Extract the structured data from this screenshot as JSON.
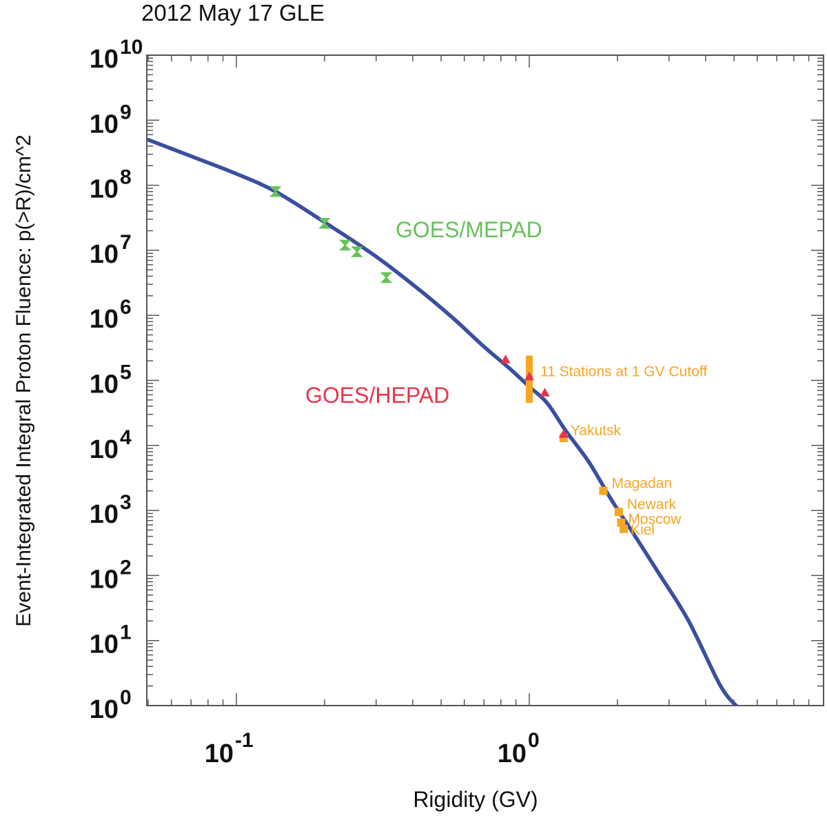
{
  "chart_data": {
    "type": "line",
    "title": "2012 May 17 GLE",
    "xlabel": "Rigidity (GV)",
    "ylabel": "Event-Integrated Integral Proton Fluence: p(>R)/cm^2",
    "x_scale": "log",
    "y_scale": "log",
    "xlim": [
      0.05,
      9.6
    ],
    "ylim": [
      1,
      10000000000
    ],
    "x_ticks": [
      {
        "value": 0.1,
        "base": "10",
        "exp": "-1"
      },
      {
        "value": 1,
        "base": "10",
        "exp": "0"
      }
    ],
    "y_ticks": [
      {
        "value": 1,
        "base": "10",
        "exp": "0"
      },
      {
        "value": 10,
        "base": "10",
        "exp": "1"
      },
      {
        "value": 100,
        "base": "10",
        "exp": "2"
      },
      {
        "value": 1000,
        "base": "10",
        "exp": "3"
      },
      {
        "value": 10000,
        "base": "10",
        "exp": "4"
      },
      {
        "value": 100000,
        "base": "10",
        "exp": "5"
      },
      {
        "value": 1000000,
        "base": "10",
        "exp": "6"
      },
      {
        "value": 10000000,
        "base": "10",
        "exp": "7"
      },
      {
        "value": 100000000,
        "base": "10",
        "exp": "8"
      },
      {
        "value": 1000000000,
        "base": "10",
        "exp": "9"
      },
      {
        "value": 10000000000,
        "base": "10",
        "exp": "10"
      }
    ],
    "fit_curve": {
      "color": "#3a4fa0",
      "x": [
        0.05,
        0.07,
        0.1,
        0.136,
        0.2,
        0.3,
        0.42,
        0.55,
        0.7,
        0.86,
        1.0,
        1.15,
        1.33,
        1.6,
        1.9,
        2.3,
        2.8,
        3.5,
        4.5,
        5.2
      ],
      "y": [
        500000000,
        280000000,
        150000000,
        80000000,
        27000000,
        8000000,
        2500000,
        900000,
        330000,
        150000,
        80000,
        45000,
        17000,
        5500,
        1500,
        400,
        100,
        20,
        2,
        0.9
      ]
    },
    "series": [
      {
        "name": "GOES/MEPAD",
        "color": "#66c25a",
        "marker": "bowtie",
        "x": [
          0.136,
          0.2,
          0.235,
          0.258,
          0.325
        ],
        "y": [
          80000000,
          26000000,
          12000000,
          9500000,
          3800000
        ]
      },
      {
        "name": "GOES/HEPAD",
        "color": "#e8344a",
        "marker": "triangle",
        "x": [
          0.83,
          1.0,
          1.13,
          1.31
        ],
        "y": [
          210000,
          115000,
          65000,
          15000
        ]
      }
    ],
    "neutron_monitors": {
      "color": "#f5a623",
      "stations": [
        {
          "name": "11 Stations at 1 GV Cutoff",
          "x": 1.0,
          "y": 110000,
          "y_low": 45000,
          "y_high": 240000
        },
        {
          "name": "Yakutsk",
          "x": 1.31,
          "y": 13000
        },
        {
          "name": "Magadan",
          "x": 1.79,
          "y": 2000
        },
        {
          "name": "Newark",
          "x": 2.02,
          "y": 950
        },
        {
          "name": "Moscow",
          "x": 2.06,
          "y": 650
        },
        {
          "name": "Kiel",
          "x": 2.1,
          "y": 520
        }
      ]
    }
  }
}
